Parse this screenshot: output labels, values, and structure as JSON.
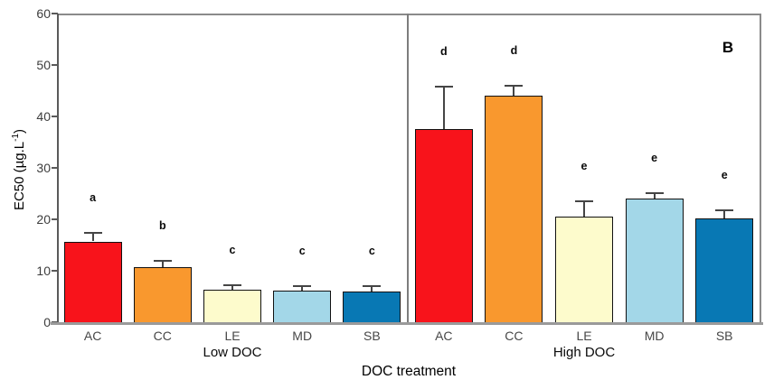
{
  "chart_data": {
    "type": "bar",
    "title": "",
    "panel_label": "B",
    "xlabel": "DOC treatment",
    "ylabel": "EC50 (µg.L-1)",
    "ylabel_prefix": "EC50 (µg.L",
    "ylabel_sup": "-1",
    "ylabel_suffix": ")",
    "ylim": [
      0,
      60
    ],
    "y_ticks": [
      0,
      10,
      20,
      30,
      40,
      50,
      60
    ],
    "grid": "off",
    "legend": "none",
    "categories": [
      "AC",
      "CC",
      "LE",
      "MD",
      "SB"
    ],
    "category_colors": [
      "#F8131B",
      "#F9982E",
      "#FDFBCC",
      "#A3D7E8",
      "#0878B4"
    ],
    "groups": [
      {
        "label": "Low DOC",
        "values": [
          15.7,
          10.7,
          6.4,
          6.2,
          6.0
        ],
        "errors": [
          1.6,
          1.3,
          0.8,
          0.9,
          1.1
        ],
        "sig_letters": [
          "a",
          "b",
          "c",
          "c",
          "c"
        ]
      },
      {
        "label": "High DOC",
        "values": [
          37.5,
          44.0,
          20.6,
          24.0,
          20.2
        ],
        "errors": [
          8.3,
          2.0,
          2.9,
          1.1,
          1.5
        ],
        "sig_letters": [
          "d",
          "d",
          "e",
          "e",
          "e"
        ]
      }
    ],
    "colors": {
      "bar_outline": "#111111",
      "error_bar": "#454545",
      "axis": "#5a5a5a",
      "frame": "#8a8a8a",
      "baseline": "#9a9a9a",
      "tick_text": "#3d3d3d",
      "text": "#000000"
    }
  }
}
